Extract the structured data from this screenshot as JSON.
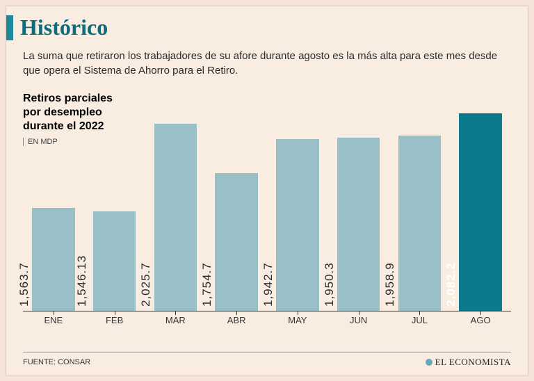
{
  "background_outer": "#f5e4d7",
  "background_inner": "#f9ede2",
  "title": {
    "text": "Histórico",
    "color": "#0f6b7a",
    "bar_color": "#1d8a9c",
    "fontsize": 32
  },
  "subtitle": "La suma que retiraron los trabajadores de su afore durante agosto es la más alta para este mes desde que opera el Sistema de Ahorro para el Retiro.",
  "chart": {
    "type": "bar",
    "title_lines": [
      "Retiros parciales",
      "por desempleo",
      "durante el 2022"
    ],
    "unit": "EN MDP",
    "categories": [
      "ENE",
      "FEB",
      "MAR",
      "ABR",
      "MAY",
      "JUN",
      "JUL",
      "AGO"
    ],
    "values": [
      1563.7,
      1546.13,
      2025.7,
      1754.7,
      1942.7,
      1950.3,
      1958.9,
      2082.2
    ],
    "value_labels": [
      "1,563.7",
      "1,546.13",
      "2,025.7",
      "1,754.7",
      "1,942.7",
      "1,950.3",
      "1,958.9",
      "2,082.2"
    ],
    "bar_colors": [
      "#99c0c7",
      "#99c0c7",
      "#99c0c7",
      "#99c0c7",
      "#99c0c7",
      "#99c0c7",
      "#99c0c7",
      "#0a7a8c"
    ],
    "label_colors": [
      "#2a2a2a",
      "#2a2a2a",
      "#2a2a2a",
      "#2a2a2a",
      "#2a2a2a",
      "#2a2a2a",
      "#2a2a2a",
      "#ffffff"
    ],
    "label_weight": [
      "normal",
      "normal",
      "normal",
      "normal",
      "normal",
      "normal",
      "normal",
      "bold"
    ],
    "ylim": [
      1000,
      2200
    ],
    "bar_width": 0.7,
    "axis_color": "#333333",
    "label_fontsize": 17,
    "xtick_fontsize": 13
  },
  "footer": {
    "source": "FUENTE: CONSAR",
    "brand": "EL ECONOMISTA"
  }
}
